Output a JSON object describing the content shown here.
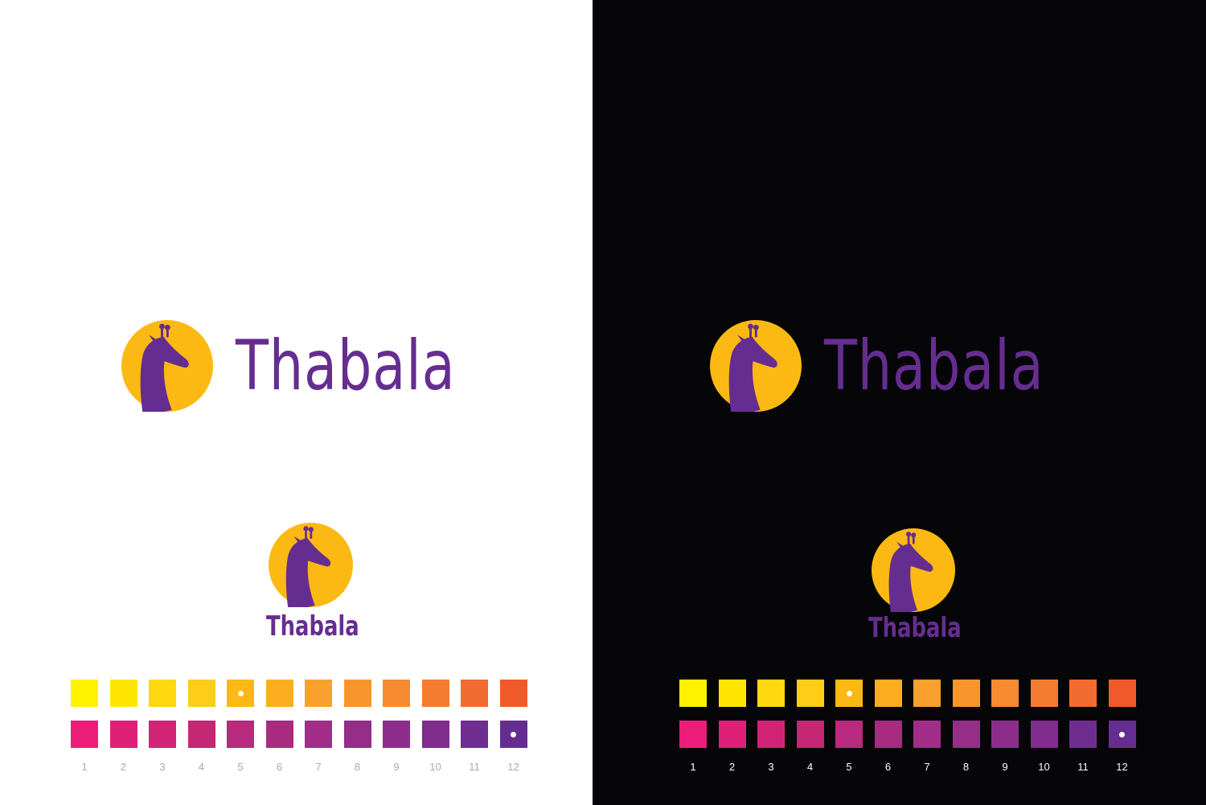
{
  "brand": {
    "name": "Thabala"
  },
  "logo": {
    "icon": "giraffe-head-icon",
    "circle_color": "#fdb913",
    "giraffe_color": "#662d91"
  },
  "palette": {
    "warm": [
      "#fff200",
      "#ffe600",
      "#ffd90f",
      "#fecd16",
      "#fdb913",
      "#fbae1e",
      "#f9a12c",
      "#f8962d",
      "#f68b30",
      "#f47c30",
      "#f26b30",
      "#f05a2b"
    ],
    "cool": [
      "#ec1e79",
      "#de2177",
      "#d12476",
      "#c42774",
      "#b82a7d",
      "#a82b80",
      "#a22d88",
      "#952d89",
      "#8c2d8b",
      "#7f2c8d",
      "#6f2d8f",
      "#662d91"
    ],
    "labels": [
      "1",
      "2",
      "3",
      "4",
      "5",
      "6",
      "7",
      "8",
      "9",
      "10",
      "11",
      "12"
    ],
    "selected_warm": 5,
    "selected_cool": 12
  }
}
